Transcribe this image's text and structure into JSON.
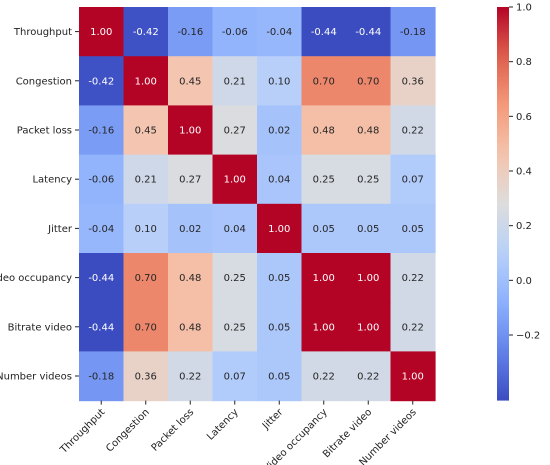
{
  "chart_data": {
    "type": "heatmap",
    "title": "",
    "xlabel": "",
    "ylabel": "",
    "variables": [
      "Throughput",
      "Congestion",
      "Packet loss",
      "Latency",
      "Jitter",
      "Video occupancy",
      "Bitrate video",
      "Number videos"
    ],
    "matrix": [
      [
        1.0,
        -0.42,
        -0.16,
        -0.06,
        -0.04,
        -0.44,
        -0.44,
        -0.18
      ],
      [
        -0.42,
        1.0,
        0.45,
        0.21,
        0.1,
        0.7,
        0.7,
        0.36
      ],
      [
        -0.16,
        0.45,
        1.0,
        0.27,
        0.02,
        0.48,
        0.48,
        0.22
      ],
      [
        -0.06,
        0.21,
        0.27,
        1.0,
        0.04,
        0.25,
        0.25,
        0.07
      ],
      [
        -0.04,
        0.1,
        0.02,
        0.04,
        1.0,
        0.05,
        0.05,
        0.05
      ],
      [
        -0.44,
        0.7,
        0.48,
        0.25,
        0.05,
        1.0,
        1.0,
        0.22
      ],
      [
        -0.44,
        0.7,
        0.48,
        0.25,
        0.05,
        1.0,
        1.0,
        0.22
      ],
      [
        -0.18,
        0.36,
        0.22,
        0.07,
        0.05,
        0.22,
        0.22,
        1.0
      ]
    ],
    "value_format": "2 decimals",
    "colormap": "coolwarm",
    "colorbar": {
      "range": [
        -0.44,
        1.0
      ],
      "ticks": [
        -0.2,
        0.0,
        0.2,
        0.4,
        0.6,
        0.8,
        1.0
      ],
      "tick_labels": [
        "−0.2",
        "0.0",
        "0.2",
        "0.4",
        "0.6",
        "0.8",
        "1.0"
      ],
      "placement": "right"
    },
    "x_tick_rotation_deg": 45,
    "grid": false
  }
}
